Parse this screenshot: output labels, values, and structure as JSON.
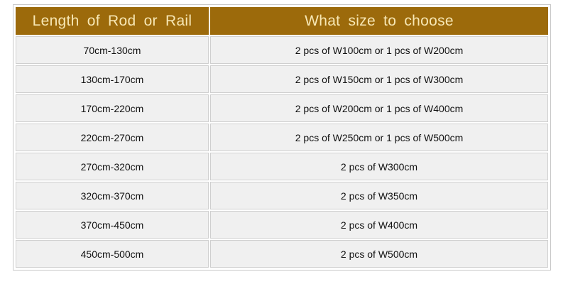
{
  "table": {
    "headers": [
      "Length of Rod or Rail",
      "What size to choose"
    ],
    "rows": [
      [
        "70cm-130cm",
        "2 pcs of W100cm or 1 pcs of W200cm"
      ],
      [
        "130cm-170cm",
        "2 pcs of W150cm or 1 pcs of W300cm"
      ],
      [
        "170cm-220cm",
        "2 pcs of W200cm or 1 pcs of W400cm"
      ],
      [
        "220cm-270cm",
        "2 pcs of W250cm or 1 pcs of W500cm"
      ],
      [
        "270cm-320cm",
        "2 pcs of W300cm"
      ],
      [
        "320cm-370cm",
        "2 pcs of W350cm"
      ],
      [
        "370cm-450cm",
        "2 pcs of W400cm"
      ],
      [
        "450cm-500cm",
        "2 pcs of W500cm"
      ]
    ],
    "colors": {
      "header_bg": "#9c6a0b",
      "header_text": "#f7e7b4",
      "cell_bg": "#f0f0f0"
    }
  }
}
